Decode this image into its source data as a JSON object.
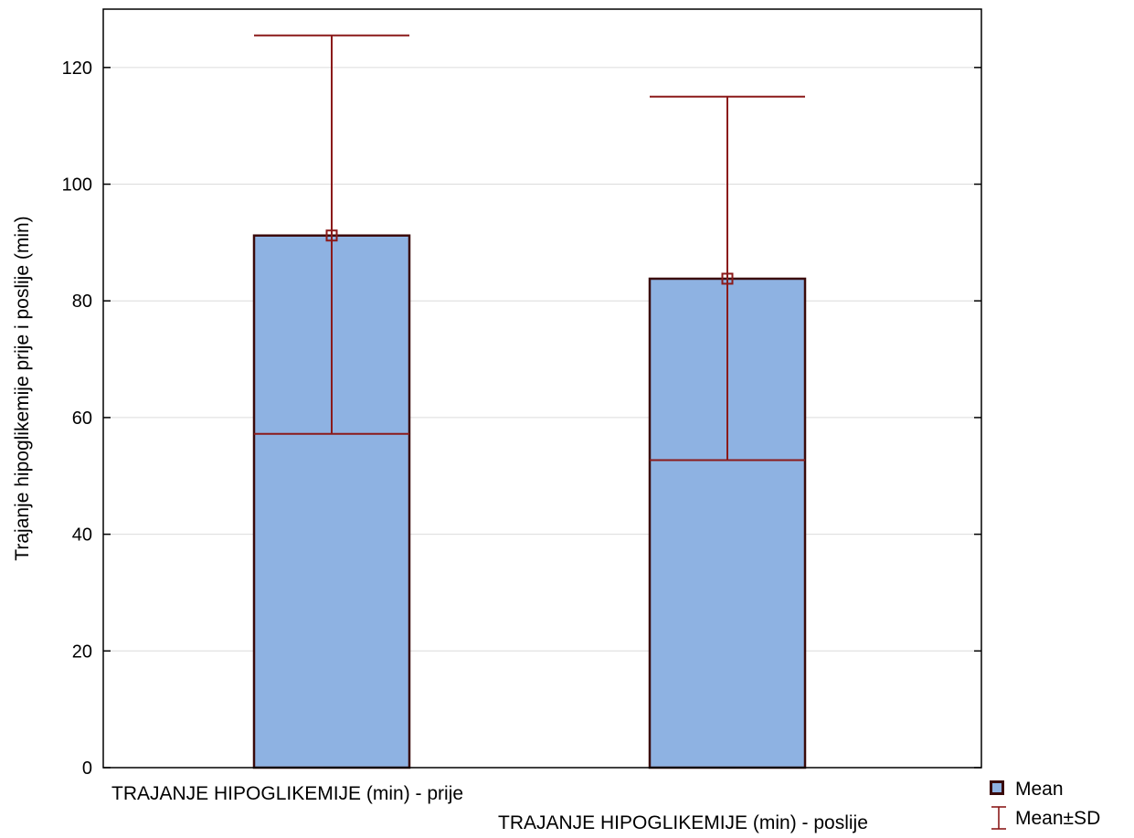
{
  "chart_data": {
    "type": "bar",
    "ylabel": "Trajanje hipoglikemije prije i poslije (min)",
    "ylim": [
      0,
      130
    ],
    "yticks": [
      0,
      20,
      40,
      60,
      80,
      100,
      120
    ],
    "grid": true,
    "categories": [
      "TRAJANJE HIPOGLIKEMIJE (min) - prije",
      "TRAJANJE HIPOGLIKEMIJE (min) - poslije"
    ],
    "means": [
      91.2,
      83.8
    ],
    "sd_lower": [
      57.2,
      52.7
    ],
    "sd_upper": [
      125.5,
      115.0
    ],
    "legend": {
      "position": "bottom-right",
      "entries": [
        "Mean",
        "Mean±SD"
      ]
    },
    "colors": {
      "bar_fill": "#8EB2E2",
      "bar_stroke": "#3A0A0A",
      "error": "#8B1A1A",
      "grid": "#DCDCDC"
    }
  }
}
